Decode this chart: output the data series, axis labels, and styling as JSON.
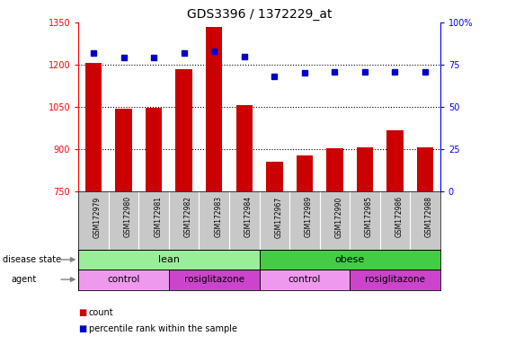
{
  "title": "GDS3396 / 1372229_at",
  "samples": [
    "GSM172979",
    "GSM172980",
    "GSM172981",
    "GSM172982",
    "GSM172983",
    "GSM172984",
    "GSM172967",
    "GSM172989",
    "GSM172990",
    "GSM172985",
    "GSM172986",
    "GSM172988"
  ],
  "counts": [
    1205,
    1043,
    1048,
    1183,
    1334,
    1058,
    857,
    878,
    905,
    908,
    968,
    908
  ],
  "percentiles": [
    82,
    79,
    79,
    82,
    83,
    80,
    68,
    70,
    71,
    71,
    71,
    71
  ],
  "ylim_left": [
    750,
    1350
  ],
  "ylim_right": [
    0,
    100
  ],
  "yticks_left": [
    750,
    900,
    1050,
    1200,
    1350
  ],
  "yticks_right": [
    0,
    25,
    50,
    75,
    100
  ],
  "bar_color": "#cc0000",
  "dot_color": "#0000cc",
  "tick_area_color": "#c8c8c8",
  "disease_state_lean_color": "#99ee99",
  "disease_state_obese_color": "#44cc44",
  "agent_control_color": "#ee99ee",
  "agent_rosi_color": "#cc44cc",
  "legend_items": [
    "count",
    "percentile rank within the sample"
  ]
}
